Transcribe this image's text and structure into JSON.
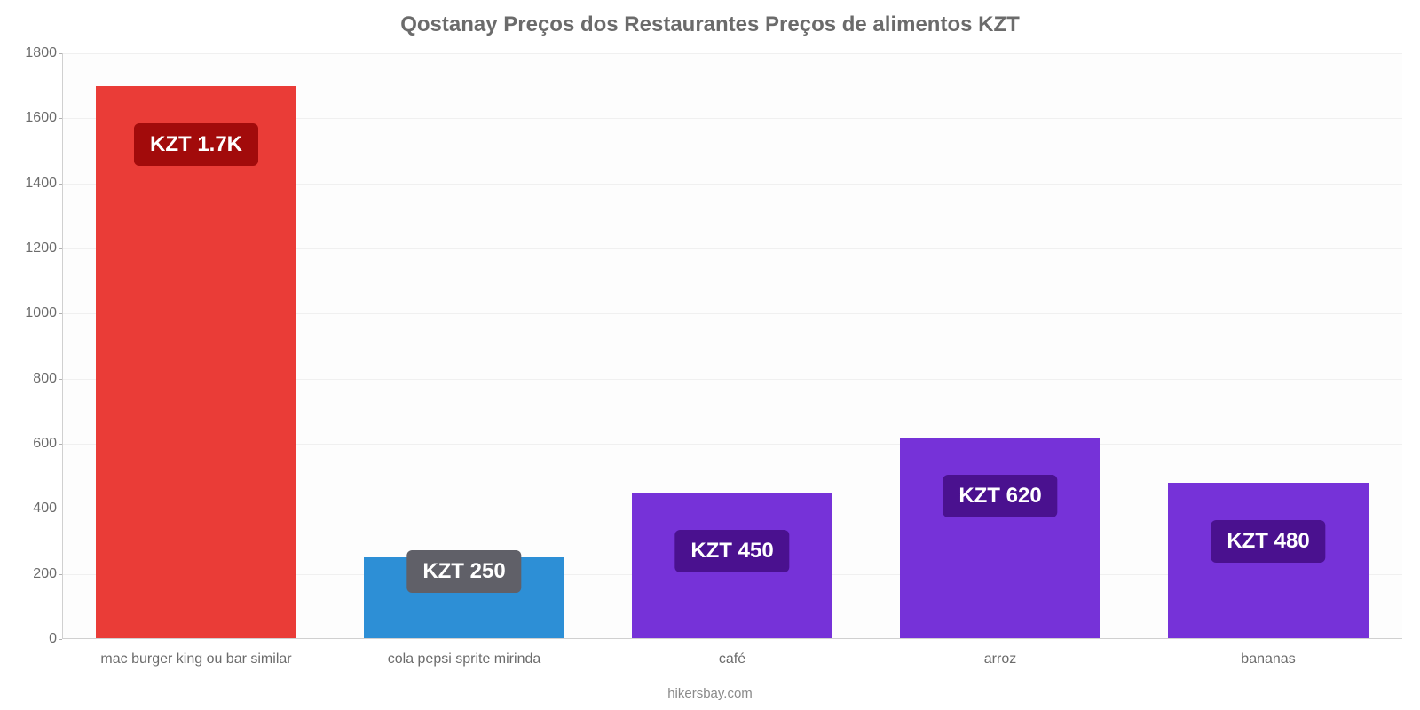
{
  "chart": {
    "type": "bar",
    "title": "Qostanay Preços dos Restaurantes Preços de alimentos KZT",
    "title_fontsize": 24,
    "title_color": "#6b6b6b",
    "source_text": "hikersbay.com",
    "source_fontsize": 15,
    "background_color": "#ffffff",
    "plot_background_color": "#fdfdfd",
    "grid_color": "#f0f0f0",
    "axis_color": "#d0d0d0",
    "tick_label_color": "#6b6b6b",
    "ylim_min": 0,
    "ylim_max": 1800,
    "ytick_step": 200,
    "ytick_fontsize": 16,
    "xtick_fontsize": 16,
    "bar_width": 0.75,
    "value_badge_fontsize": 24,
    "value_badge_text_color": "#ffffff",
    "categories": [
      "mac burger king ou bar similar",
      "cola pepsi sprite mirinda",
      "café",
      "arroz",
      "bananas"
    ],
    "values": [
      1700,
      250,
      450,
      620,
      480
    ],
    "value_labels": [
      "KZT 1.7K",
      "KZT 250",
      "KZT 450",
      "KZT 620",
      "KZT 480"
    ],
    "bar_colors": [
      "#ea3c37",
      "#2d8fd6",
      "#7632d8",
      "#7632d8",
      "#7632d8"
    ],
    "badge_colors": [
      "#a20b0b",
      "#606068",
      "#4a118f",
      "#4a118f",
      "#4a118f"
    ],
    "yticks": [
      0,
      200,
      400,
      600,
      800,
      1000,
      1200,
      1400,
      1600,
      1800
    ]
  }
}
